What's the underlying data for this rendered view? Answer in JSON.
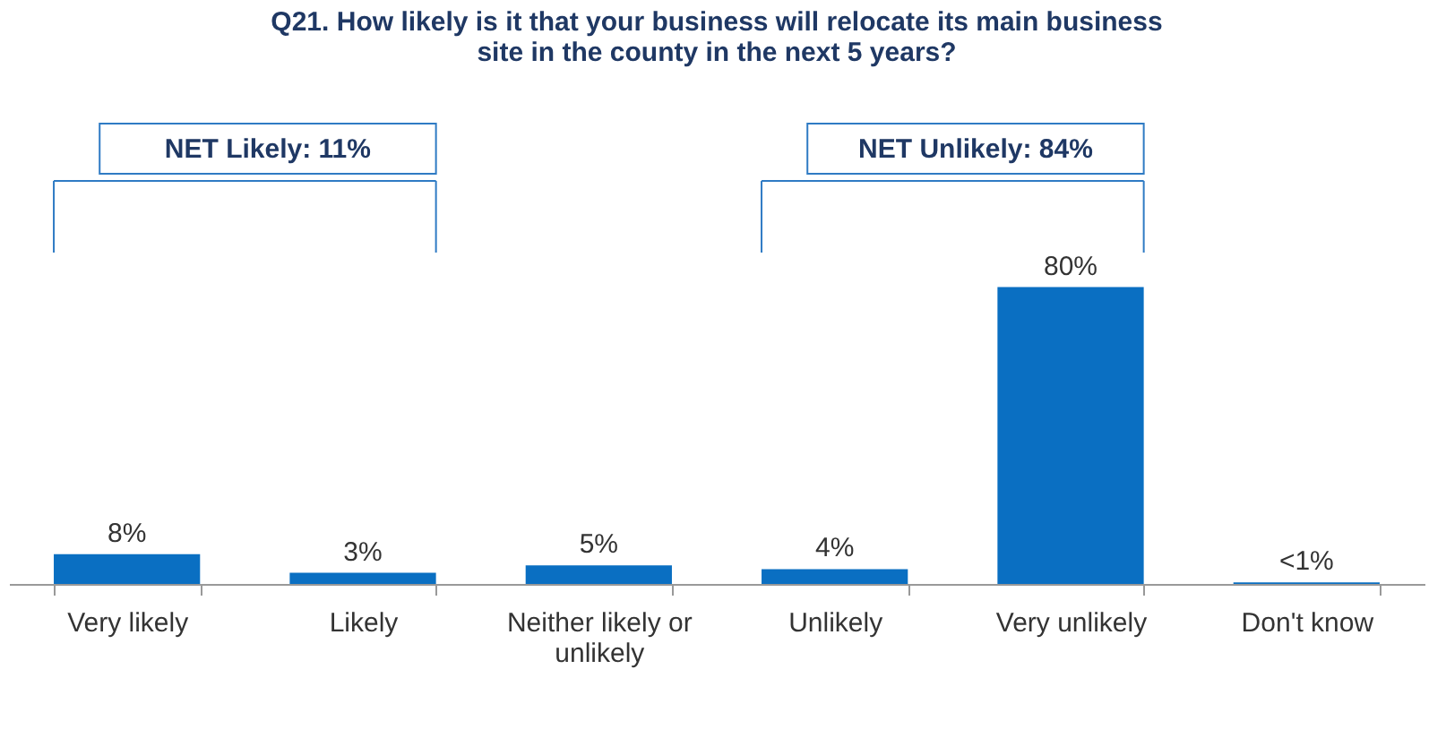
{
  "chart_data": {
    "type": "bar",
    "title": "Q21. How likely is it that your business will relocate its main business site in the county in the next 5 years?",
    "categories": [
      "Very likely",
      "Likely",
      "Neither likely or unlikely",
      "Unlikely",
      "Very unlikely",
      "Don't know"
    ],
    "values": [
      8,
      3,
      5,
      4,
      80,
      0.4
    ],
    "value_labels": [
      "8%",
      "3%",
      "5%",
      "4%",
      "80%",
      "<1%"
    ],
    "color": "#0a6fc2",
    "annotations": [
      "NET Likely: 11%",
      "NET Unlikely: 84%"
    ],
    "grid": false
  }
}
